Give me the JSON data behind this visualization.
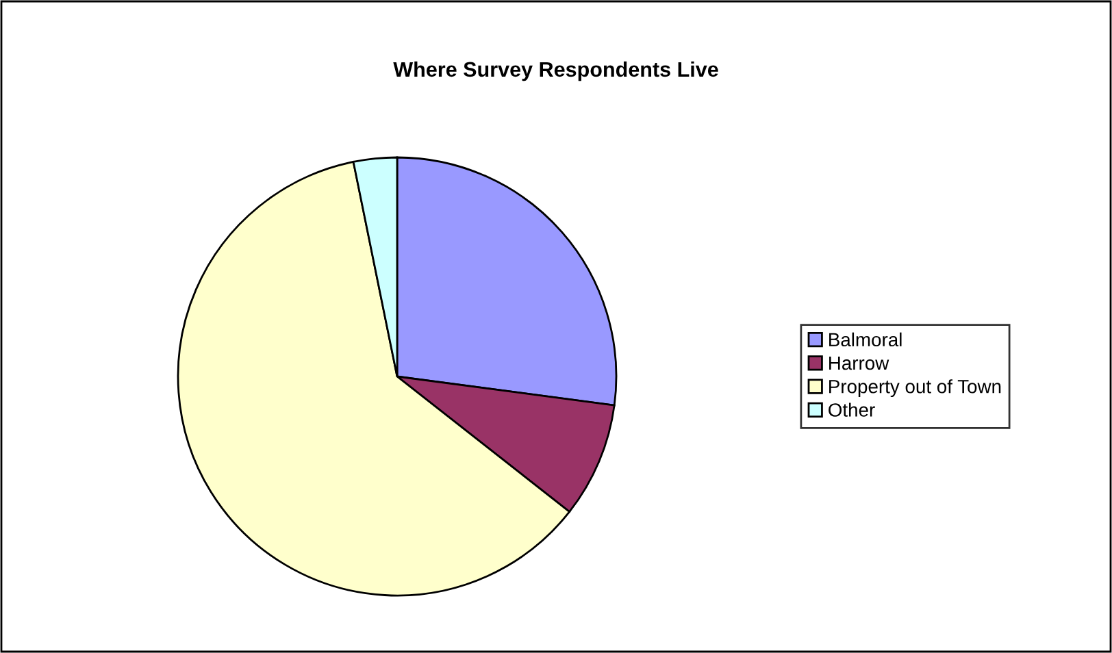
{
  "chart_data": {
    "type": "pie",
    "title": "Where Survey Respondents Live",
    "categories": [
      "Balmoral",
      "Harrow",
      "Property out of Town",
      "Other"
    ],
    "values": [
      27.1,
      8.5,
      61.2,
      3.2
    ],
    "colors": [
      "#9999ff",
      "#993366",
      "#ffffcc",
      "#ccffff"
    ],
    "legend": "right"
  }
}
